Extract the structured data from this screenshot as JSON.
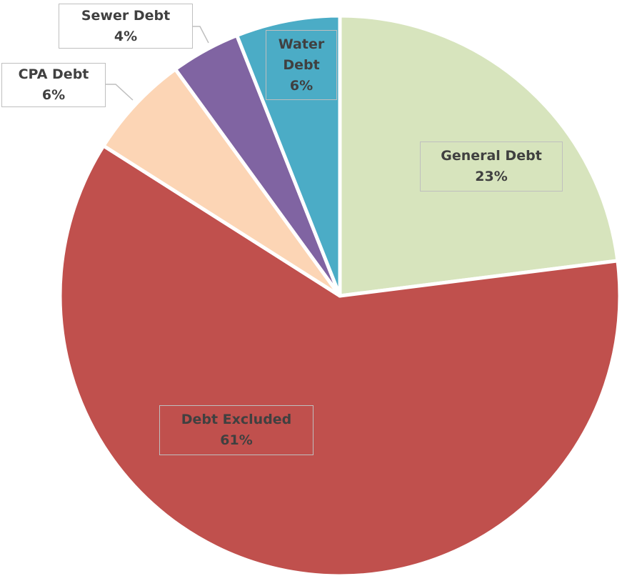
{
  "chart_data": {
    "type": "pie",
    "categories": [
      "General Debt",
      "Debt Excluded",
      "CPA Debt",
      "Sewer Debt",
      "Water Debt"
    ],
    "values": [
      23,
      61,
      6,
      4,
      6
    ],
    "value_labels": [
      "23%",
      "61%",
      "6%",
      "4%",
      "6%"
    ],
    "colors": [
      "#d7e4bd",
      "#c0504d",
      "#fcd5b5",
      "#8064a2",
      "#4bacc6"
    ]
  }
}
